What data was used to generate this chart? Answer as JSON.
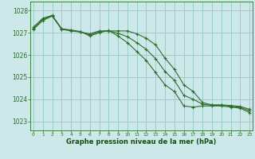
{
  "background_color": "#cce8e8",
  "grid_color": "#99cccc",
  "line_color": "#2d6e2d",
  "xlabel": "Graphe pression niveau de la mer (hPa)",
  "xlabel_color": "#1a4a1a",
  "ylabel_ticks": [
    1023,
    1024,
    1025,
    1026,
    1027,
    1028
  ],
  "xlim": [
    -0.3,
    23.3
  ],
  "ylim": [
    1022.6,
    1028.4
  ],
  "xticks": [
    0,
    1,
    2,
    3,
    4,
    5,
    6,
    7,
    8,
    9,
    10,
    11,
    12,
    13,
    14,
    15,
    16,
    17,
    18,
    19,
    20,
    21,
    22,
    23
  ],
  "series": [
    [
      1027.15,
      1027.55,
      1027.75,
      1027.15,
      1027.08,
      1027.03,
      1026.95,
      1027.08,
      1027.08,
      1027.08,
      1027.08,
      1026.95,
      1026.75,
      1026.45,
      1025.85,
      1025.35,
      1024.65,
      1024.35,
      1023.85,
      1023.75,
      1023.75,
      1023.72,
      1023.68,
      1023.55
    ],
    [
      1027.25,
      1027.65,
      1027.78,
      1027.18,
      1027.12,
      1027.05,
      1026.85,
      1027.0,
      1027.1,
      1026.85,
      1026.55,
      1026.15,
      1025.75,
      1025.2,
      1024.65,
      1024.35,
      1023.7,
      1023.65,
      1023.7,
      1023.7,
      1023.7,
      1023.65,
      1023.6,
      1023.4
    ],
    [
      1027.2,
      1027.6,
      1027.77,
      1027.16,
      1027.1,
      1027.04,
      1026.9,
      1027.04,
      1027.09,
      1026.97,
      1026.82,
      1026.55,
      1026.25,
      1025.83,
      1025.25,
      1024.85,
      1024.18,
      1024.0,
      1023.78,
      1023.73,
      1023.73,
      1023.69,
      1023.64,
      1023.48
    ]
  ]
}
